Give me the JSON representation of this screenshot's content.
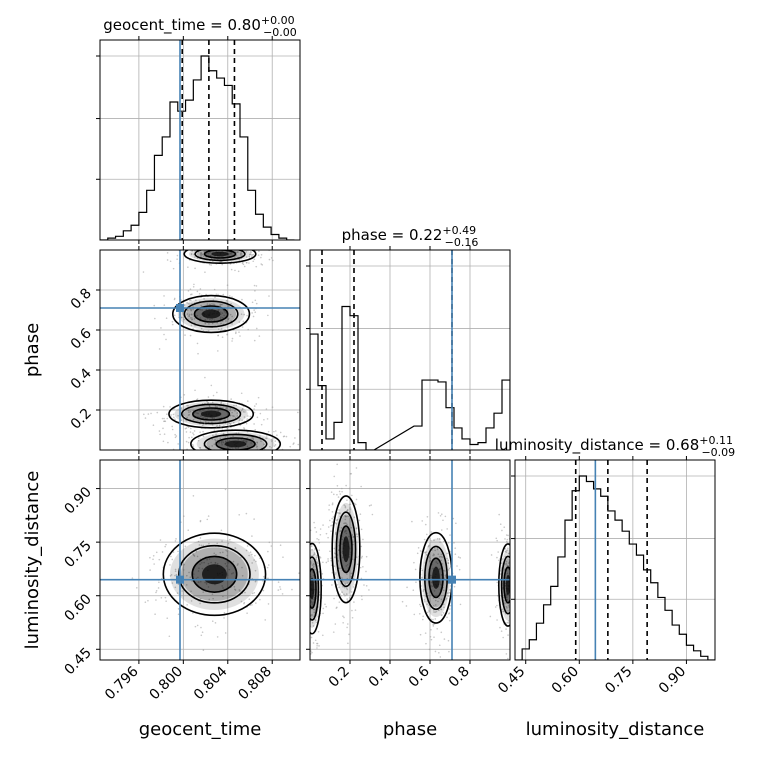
{
  "chart_data": {
    "type": "corner",
    "parameters": [
      {
        "name": "geocent_time",
        "range": [
          0.7925,
          0.8105
        ],
        "ticks": [
          0.796,
          0.8,
          0.804,
          0.808
        ],
        "tick_labels": [
          "0.796",
          "0.800",
          "0.804",
          "0.808"
        ],
        "median": "0.80",
        "plus": "+0.00",
        "minus": "−0.00",
        "quantiles": [
          0.7999,
          0.8023,
          0.8046
        ],
        "truth": 0.7997
      },
      {
        "name": "phase",
        "range": [
          0.0,
          1.0
        ],
        "ticks": [
          0.2,
          0.4,
          0.6,
          0.8
        ],
        "tick_labels": [
          "0.2",
          "0.4",
          "0.6",
          "0.8"
        ],
        "median": "0.22",
        "plus": "+0.49",
        "minus": "−0.16",
        "quantiles": [
          0.06,
          0.22,
          0.71
        ],
        "truth": 0.71
      },
      {
        "name": "luminosity_distance",
        "range": [
          0.42,
          0.98
        ],
        "ticks": [
          0.45,
          0.6,
          0.75,
          0.9
        ],
        "tick_labels": [
          "0.45",
          "0.60",
          "0.75",
          "0.90"
        ],
        "median": "0.68",
        "plus": "+0.11",
        "minus": "−0.09",
        "quantiles": [
          0.59,
          0.68,
          0.79
        ],
        "truth": 0.645
      }
    ],
    "histograms": {
      "geocent_time": [
        [
          0.7925,
          0
        ],
        [
          0.7932,
          0.01
        ],
        [
          0.7939,
          0.02
        ],
        [
          0.7946,
          0.05
        ],
        [
          0.7953,
          0.08
        ],
        [
          0.796,
          0.15
        ],
        [
          0.7967,
          0.27
        ],
        [
          0.7974,
          0.46
        ],
        [
          0.7981,
          0.56
        ],
        [
          0.7988,
          0.75
        ],
        [
          0.7995,
          0.7
        ],
        [
          0.8002,
          0.76
        ],
        [
          0.8009,
          0.87
        ],
        [
          0.8016,
          1.0
        ],
        [
          0.8023,
          0.92
        ],
        [
          0.803,
          0.88
        ],
        [
          0.8037,
          0.84
        ],
        [
          0.8044,
          0.74
        ],
        [
          0.8051,
          0.56
        ],
        [
          0.8058,
          0.27
        ],
        [
          0.8065,
          0.14
        ],
        [
          0.8072,
          0.07
        ],
        [
          0.8079,
          0.03
        ],
        [
          0.8086,
          0.01
        ],
        [
          0.8093,
          0.0
        ]
      ],
      "phase": [
        [
          0.0,
          0.63
        ],
        [
          0.04,
          0.35
        ],
        [
          0.08,
          0.06
        ],
        [
          0.12,
          0.15
        ],
        [
          0.16,
          0.78
        ],
        [
          0.2,
          0.73
        ],
        [
          0.24,
          0.04
        ],
        [
          0.28,
          0.0
        ],
        [
          0.52,
          0.13
        ],
        [
          0.56,
          0.38
        ],
        [
          0.6,
          0.38
        ],
        [
          0.64,
          0.37
        ],
        [
          0.68,
          0.23
        ],
        [
          0.72,
          0.12
        ],
        [
          0.76,
          0.06
        ],
        [
          0.8,
          0.03
        ],
        [
          0.84,
          0.04
        ],
        [
          0.88,
          0.12
        ],
        [
          0.92,
          0.2
        ],
        [
          0.96,
          0.38
        ]
      ],
      "luminosity_distance": [
        [
          0.42,
          0
        ],
        [
          0.44,
          0.06
        ],
        [
          0.46,
          0.11
        ],
        [
          0.48,
          0.2
        ],
        [
          0.5,
          0.3
        ],
        [
          0.52,
          0.4
        ],
        [
          0.54,
          0.56
        ],
        [
          0.56,
          0.76
        ],
        [
          0.58,
          0.92
        ],
        [
          0.6,
          1.0
        ],
        [
          0.62,
          0.97
        ],
        [
          0.64,
          0.93
        ],
        [
          0.66,
          0.89
        ],
        [
          0.68,
          0.81
        ],
        [
          0.7,
          0.76
        ],
        [
          0.72,
          0.7
        ],
        [
          0.74,
          0.63
        ],
        [
          0.76,
          0.57
        ],
        [
          0.78,
          0.49
        ],
        [
          0.8,
          0.42
        ],
        [
          0.82,
          0.34
        ],
        [
          0.84,
          0.27
        ],
        [
          0.86,
          0.19
        ],
        [
          0.88,
          0.14
        ],
        [
          0.9,
          0.08
        ],
        [
          0.92,
          0.05
        ],
        [
          0.94,
          0.02
        ],
        [
          0.96,
          0.0
        ]
      ]
    },
    "contour_blobs": {
      "phase_vs_geocent_time": [
        {
          "x": 0.8025,
          "y": 0.68,
          "rx": 0.003,
          "ry": 0.08
        },
        {
          "x": 0.8025,
          "y": 0.18,
          "rx": 0.0033,
          "ry": 0.06
        },
        {
          "x": 0.8047,
          "y": 0.03,
          "rx": 0.0035,
          "ry": 0.06
        },
        {
          "x": 0.8033,
          "y": 0.98,
          "rx": 0.0028,
          "ry": 0.04
        }
      ],
      "luminosity_distance_vs_geocent_time": [
        {
          "x": 0.8028,
          "y": 0.66,
          "rx": 0.004,
          "ry": 0.1
        }
      ],
      "luminosity_distance_vs_phase": [
        {
          "x": 0.01,
          "y": 0.62,
          "rx": 0.04,
          "ry": 0.11
        },
        {
          "x": 0.18,
          "y": 0.73,
          "rx": 0.06,
          "ry": 0.13
        },
        {
          "x": 0.63,
          "y": 0.65,
          "rx": 0.07,
          "ry": 0.11
        },
        {
          "x": 0.99,
          "y": 0.63,
          "rx": 0.04,
          "ry": 0.1
        }
      ]
    }
  }
}
